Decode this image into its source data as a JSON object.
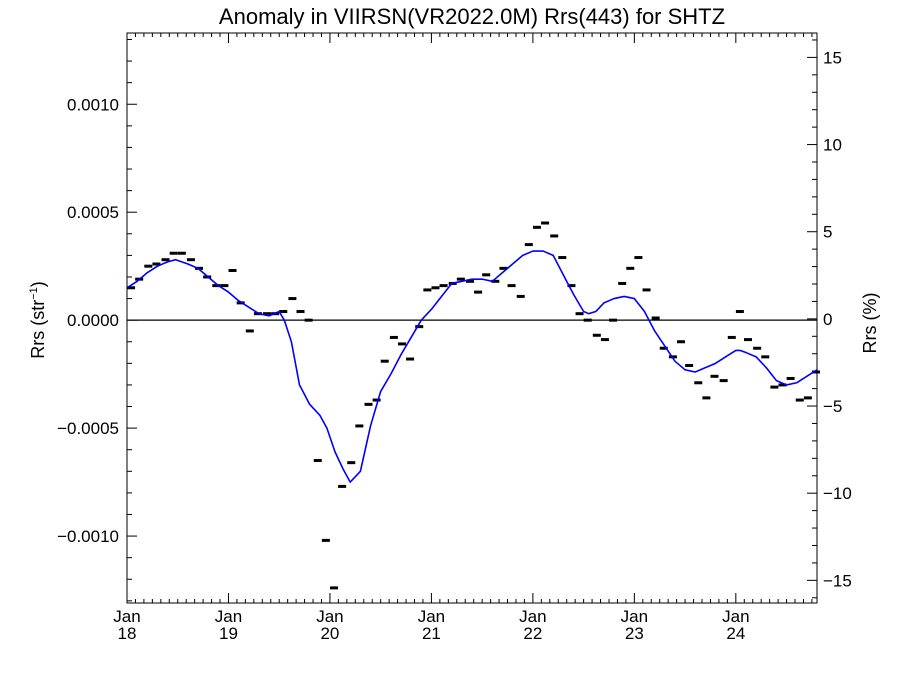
{
  "chart_data": {
    "type": "scatter",
    "title": "Anomaly in VIIRSN(VR2022.0M) Rrs(443) for SHTZ",
    "ylabel_left": "Rrs (str",
    "ylabel_left_sup": "−1",
    "ylabel_left_end": ")",
    "ylabel_right": "Rrs (%)",
    "xlim": [
      2018.0,
      2024.8
    ],
    "ylim": [
      -0.00131,
      0.00133
    ],
    "y2lim": [
      -16.3,
      16.4
    ],
    "zero_line": true,
    "grid": false,
    "x_ticks": [
      {
        "x": 2018,
        "line1": "Jan",
        "line2": "18"
      },
      {
        "x": 2019,
        "line1": "Jan",
        "line2": "19"
      },
      {
        "x": 2020,
        "line1": "Jan",
        "line2": "20"
      },
      {
        "x": 2021,
        "line1": "Jan",
        "line2": "21"
      },
      {
        "x": 2022,
        "line1": "Jan",
        "line2": "22"
      },
      {
        "x": 2023,
        "line1": "Jan",
        "line2": "23"
      },
      {
        "x": 2024,
        "line1": "Jan",
        "line2": "24"
      }
    ],
    "y_ticks_left": [
      {
        "v": 0.001,
        "label": "0.0010"
      },
      {
        "v": 0.0005,
        "label": "0.0005"
      },
      {
        "v": 0.0,
        "label": "0.0000"
      },
      {
        "v": -0.0005,
        "label": "−0.0005"
      },
      {
        "v": -0.001,
        "label": "−0.0010"
      }
    ],
    "y_ticks_right": [
      {
        "v": 15,
        "label": "15"
      },
      {
        "v": 10,
        "label": "10"
      },
      {
        "v": 5,
        "label": "5"
      },
      {
        "v": 0,
        "label": "0"
      },
      {
        "v": -5,
        "label": "−5"
      },
      {
        "v": -10,
        "label": "−10"
      },
      {
        "v": -15,
        "label": "−15"
      }
    ],
    "series": [
      {
        "kind": "points",
        "color": "#000000",
        "x": [
          2018.04,
          2018.12,
          2018.21,
          2018.29,
          2018.38,
          2018.46,
          2018.54,
          2018.63,
          2018.71,
          2018.79,
          2018.88,
          2018.96,
          2019.04,
          2019.12,
          2019.21,
          2019.29,
          2019.38,
          2019.46,
          2019.54,
          2019.63,
          2019.71,
          2019.79,
          2019.88,
          2019.96,
          2020.04,
          2020.12,
          2020.21,
          2020.29,
          2020.38,
          2020.46,
          2020.54,
          2020.63,
          2020.71,
          2020.79,
          2020.88,
          2020.96,
          2021.04,
          2021.12,
          2021.21,
          2021.29,
          2021.38,
          2021.46,
          2021.54,
          2021.63,
          2021.71,
          2021.79,
          2021.88,
          2021.96,
          2022.04,
          2022.12,
          2022.21,
          2022.29,
          2022.38,
          2022.46,
          2022.54,
          2022.63,
          2022.71,
          2022.79,
          2022.88,
          2022.96,
          2023.04,
          2023.12,
          2023.21,
          2023.29,
          2023.38,
          2023.46,
          2023.54,
          2023.63,
          2023.71,
          2023.79,
          2023.88,
          2023.96,
          2024.04,
          2024.12,
          2024.21,
          2024.29,
          2024.38,
          2024.46,
          2024.54,
          2024.63,
          2024.71,
          2024.79
        ],
        "y": [
          0.00015,
          0.00019,
          0.00025,
          0.00026,
          0.00028,
          0.00031,
          0.00031,
          0.00028,
          0.00024,
          0.0002,
          0.00016,
          0.00016,
          0.00023,
          8e-05,
          -5e-05,
          3e-05,
          3e-05,
          3e-05,
          4e-05,
          0.0001,
          4e-05,
          0.0,
          -0.00065,
          -0.00102,
          -0.00124,
          -0.00077,
          -0.00066,
          -0.00049,
          -0.00039,
          -0.00037,
          -0.00019,
          -8e-05,
          -0.00011,
          -0.00018,
          -3e-05,
          0.00014,
          0.00015,
          0.00016,
          0.00017,
          0.00019,
          0.00018,
          0.00013,
          0.00021,
          0.00018,
          0.00024,
          0.00016,
          0.00011,
          0.00035,
          0.00043,
          0.00045,
          0.00039,
          0.00029,
          0.00016,
          3e-05,
          0.0,
          -7e-05,
          -9e-05,
          0.0,
          0.00017,
          0.00024,
          0.00029,
          0.00014,
          1e-05,
          -0.00013,
          -0.00017,
          -0.0001,
          -0.00021,
          -0.00029,
          -0.00036,
          -0.00026,
          -0.00028,
          -8e-05,
          4e-05,
          -9e-05,
          -0.00013,
          -0.00017,
          -0.00031,
          -0.0003,
          -0.00027,
          -0.00037,
          -0.00036,
          -0.00024
        ]
      },
      {
        "kind": "line",
        "color": "#0000ff",
        "x": [
          2018.0,
          2018.1,
          2018.2,
          2018.3,
          2018.4,
          2018.48,
          2018.6,
          2018.7,
          2018.8,
          2018.9,
          2019.0,
          2019.1,
          2019.2,
          2019.3,
          2019.4,
          2019.5,
          2019.55,
          2019.62,
          2019.7,
          2019.8,
          2019.9,
          2019.97,
          2020.05,
          2020.13,
          2020.2,
          2020.3,
          2020.4,
          2020.5,
          2020.6,
          2020.7,
          2020.8,
          2020.9,
          2021.0,
          2021.1,
          2021.2,
          2021.3,
          2021.4,
          2021.5,
          2021.6,
          2021.7,
          2021.8,
          2021.9,
          2022.0,
          2022.1,
          2022.2,
          2022.3,
          2022.4,
          2022.5,
          2022.55,
          2022.62,
          2022.7,
          2022.8,
          2022.9,
          2023.0,
          2023.1,
          2023.2,
          2023.3,
          2023.4,
          2023.5,
          2023.6,
          2023.7,
          2023.8,
          2023.9,
          2024.0,
          2024.04,
          2024.1,
          2024.2,
          2024.3,
          2024.4,
          2024.5,
          2024.6,
          2024.7,
          2024.8
        ],
        "y": [
          0.00015,
          0.00018,
          0.00022,
          0.00025,
          0.00027,
          0.00028,
          0.00026,
          0.00024,
          0.0002,
          0.00016,
          0.00013,
          9e-05,
          6e-05,
          3e-05,
          2e-05,
          4e-05,
          0.0,
          -0.0001,
          -0.0003,
          -0.00039,
          -0.00044,
          -0.0005,
          -0.00061,
          -0.00069,
          -0.00075,
          -0.0007,
          -0.00049,
          -0.00033,
          -0.00025,
          -0.00016,
          -8e-05,
          0.0,
          5e-05,
          0.00011,
          0.00017,
          0.00018,
          0.00019,
          0.00019,
          0.00018,
          0.00022,
          0.00026,
          0.0003,
          0.00032,
          0.00032,
          0.0003,
          0.00021,
          0.00012,
          4e-05,
          3e-05,
          4e-05,
          8e-05,
          0.0001,
          0.00011,
          0.0001,
          4e-05,
          -5e-05,
          -0.00012,
          -0.00019,
          -0.00023,
          -0.00024,
          -0.00022,
          -0.0002,
          -0.00017,
          -0.00014,
          -0.00014,
          -0.00015,
          -0.00017,
          -0.00022,
          -0.00028,
          -0.0003,
          -0.00029,
          -0.00026,
          -0.00023
        ]
      }
    ]
  }
}
